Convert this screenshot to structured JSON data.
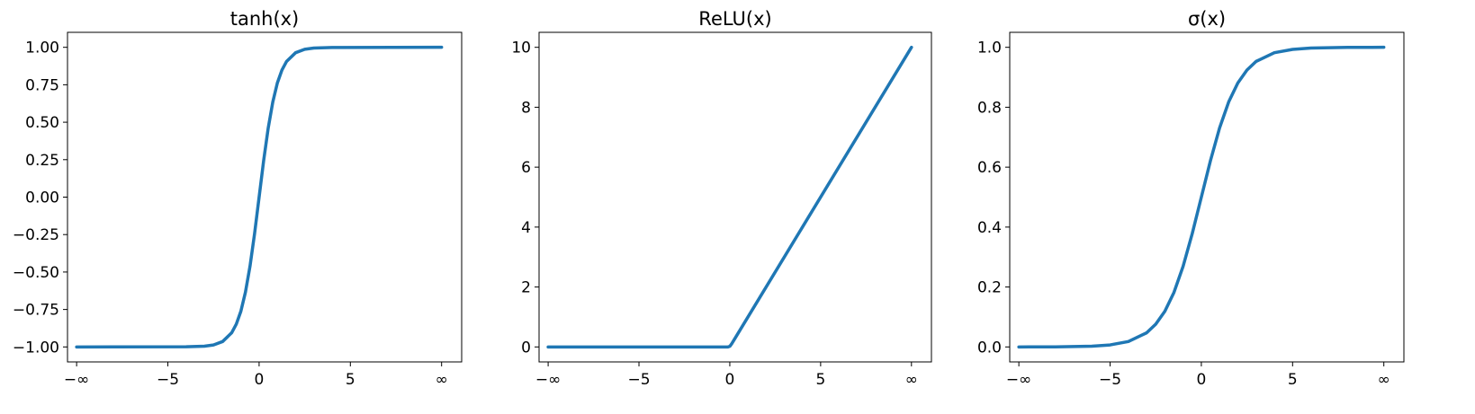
{
  "chart_data": [
    {
      "type": "line",
      "title": "tanh(x)",
      "xlabel": "",
      "ylabel": "",
      "xlim": [
        -10.5,
        11.1
      ],
      "ylim": [
        -1.1,
        1.1
      ],
      "xticks": [
        -10,
        -5,
        0,
        5,
        10
      ],
      "xtick_labels": [
        "−∞",
        "−5",
        "0",
        "5",
        "∞"
      ],
      "yticks": [
        1.0,
        0.75,
        0.5,
        0.25,
        0.0,
        -0.25,
        -0.5,
        -0.75,
        -1.0
      ],
      "ytick_labels": [
        "1.00",
        "0.75",
        "0.50",
        "0.25",
        "0.00",
        "−0.25",
        "−0.50",
        "−0.75",
        "−1.00"
      ],
      "grid": false,
      "color": "#1f77b4",
      "series": [
        {
          "x": [
            -10,
            -4,
            -3,
            -2.5,
            -2,
            -1.5,
            -1.25,
            -1,
            -0.75,
            -0.5,
            -0.25,
            0,
            0.25,
            0.5,
            0.75,
            1,
            1.25,
            1.5,
            2,
            2.5,
            3,
            4,
            10
          ],
          "y": [
            -1.0,
            -0.999,
            -0.995,
            -0.987,
            -0.964,
            -0.905,
            -0.848,
            -0.762,
            -0.635,
            -0.462,
            -0.245,
            0.0,
            0.245,
            0.462,
            0.635,
            0.762,
            0.848,
            0.905,
            0.964,
            0.987,
            0.995,
            0.999,
            1.0
          ]
        }
      ]
    },
    {
      "type": "line",
      "title": "ReLU(x)",
      "xlabel": "",
      "ylabel": "",
      "xlim": [
        -10.5,
        11.1
      ],
      "ylim": [
        -0.5,
        10.5
      ],
      "xticks": [
        -10,
        -5,
        0,
        5,
        10
      ],
      "xtick_labels": [
        "−∞",
        "−5",
        "0",
        "5",
        "∞"
      ],
      "yticks": [
        10,
        8,
        6,
        4,
        2,
        0
      ],
      "ytick_labels": [
        "10",
        "8",
        "6",
        "4",
        "2",
        "0"
      ],
      "grid": false,
      "color": "#1f77b4",
      "series": [
        {
          "x": [
            -10,
            -0.1,
            0,
            0.1,
            0.3,
            10
          ],
          "y": [
            0,
            0,
            0.02,
            0.1,
            0.3,
            10
          ]
        }
      ]
    },
    {
      "type": "line",
      "title": "σ(x)",
      "xlabel": "",
      "ylabel": "",
      "xlim": [
        -10.5,
        11.1
      ],
      "ylim": [
        -0.05,
        1.05
      ],
      "xticks": [
        -10,
        -5,
        0,
        5,
        10
      ],
      "xtick_labels": [
        "−∞",
        "−5",
        "0",
        "5",
        "∞"
      ],
      "yticks": [
        1.0,
        0.8,
        0.6,
        0.4,
        0.2,
        0.0
      ],
      "ytick_labels": [
        "1.0",
        "0.8",
        "0.6",
        "0.4",
        "0.2",
        "0.0"
      ],
      "grid": false,
      "color": "#1f77b4",
      "series": [
        {
          "x": [
            -10,
            -8,
            -6,
            -5,
            -4,
            -3,
            -2.5,
            -2,
            -1.5,
            -1,
            -0.5,
            0,
            0.5,
            1,
            1.5,
            2,
            2.5,
            3,
            4,
            5,
            6,
            8,
            10
          ],
          "y": [
            0.0,
            0.0003,
            0.0025,
            0.0067,
            0.018,
            0.047,
            0.076,
            0.119,
            0.182,
            0.269,
            0.378,
            0.5,
            0.622,
            0.731,
            0.818,
            0.881,
            0.924,
            0.953,
            0.982,
            0.993,
            0.9975,
            0.9997,
            1.0
          ]
        }
      ]
    }
  ]
}
